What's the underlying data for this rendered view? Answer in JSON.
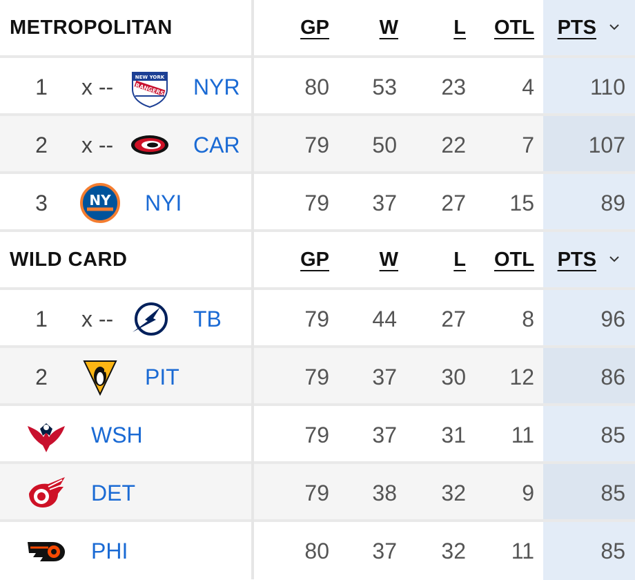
{
  "sections": [
    {
      "title": "METROPOLITAN",
      "columns": {
        "gp": "GP",
        "w": "W",
        "l": "L",
        "otl": "OTL",
        "pts": "PTS"
      },
      "rows": [
        {
          "rank": "1",
          "clinch": "x --",
          "team": "NYR",
          "logo": "rangers-logo",
          "gp": "80",
          "w": "53",
          "l": "23",
          "otl": "4",
          "pts": "110"
        },
        {
          "rank": "2",
          "clinch": "x --",
          "team": "CAR",
          "logo": "hurricanes-logo",
          "gp": "79",
          "w": "50",
          "l": "22",
          "otl": "7",
          "pts": "107"
        },
        {
          "rank": "3",
          "clinch": "",
          "team": "NYI",
          "logo": "islanders-logo",
          "gp": "79",
          "w": "37",
          "l": "27",
          "otl": "15",
          "pts": "89"
        }
      ]
    },
    {
      "title": "WILD CARD",
      "columns": {
        "gp": "GP",
        "w": "W",
        "l": "L",
        "otl": "OTL",
        "pts": "PTS"
      },
      "rows": [
        {
          "rank": "1",
          "clinch": "x --",
          "team": "TB",
          "logo": "lightning-logo",
          "gp": "79",
          "w": "44",
          "l": "27",
          "otl": "8",
          "pts": "96"
        },
        {
          "rank": "2",
          "clinch": "",
          "team": "PIT",
          "logo": "penguins-logo",
          "gp": "79",
          "w": "37",
          "l": "30",
          "otl": "12",
          "pts": "86"
        },
        {
          "rank": "",
          "clinch": "",
          "team": "WSH",
          "logo": "capitals-logo",
          "gp": "79",
          "w": "37",
          "l": "31",
          "otl": "11",
          "pts": "85"
        },
        {
          "rank": "",
          "clinch": "",
          "team": "DET",
          "logo": "red-wings-logo",
          "gp": "79",
          "w": "38",
          "l": "32",
          "otl": "9",
          "pts": "85"
        },
        {
          "rank": "",
          "clinch": "",
          "team": "PHI",
          "logo": "flyers-logo",
          "gp": "80",
          "w": "37",
          "l": "32",
          "otl": "11",
          "pts": "85"
        }
      ]
    }
  ],
  "colors": {
    "link": "#1a6ad4",
    "pts_column": "#e3ecf7",
    "alt_row": "#f5f5f5"
  }
}
